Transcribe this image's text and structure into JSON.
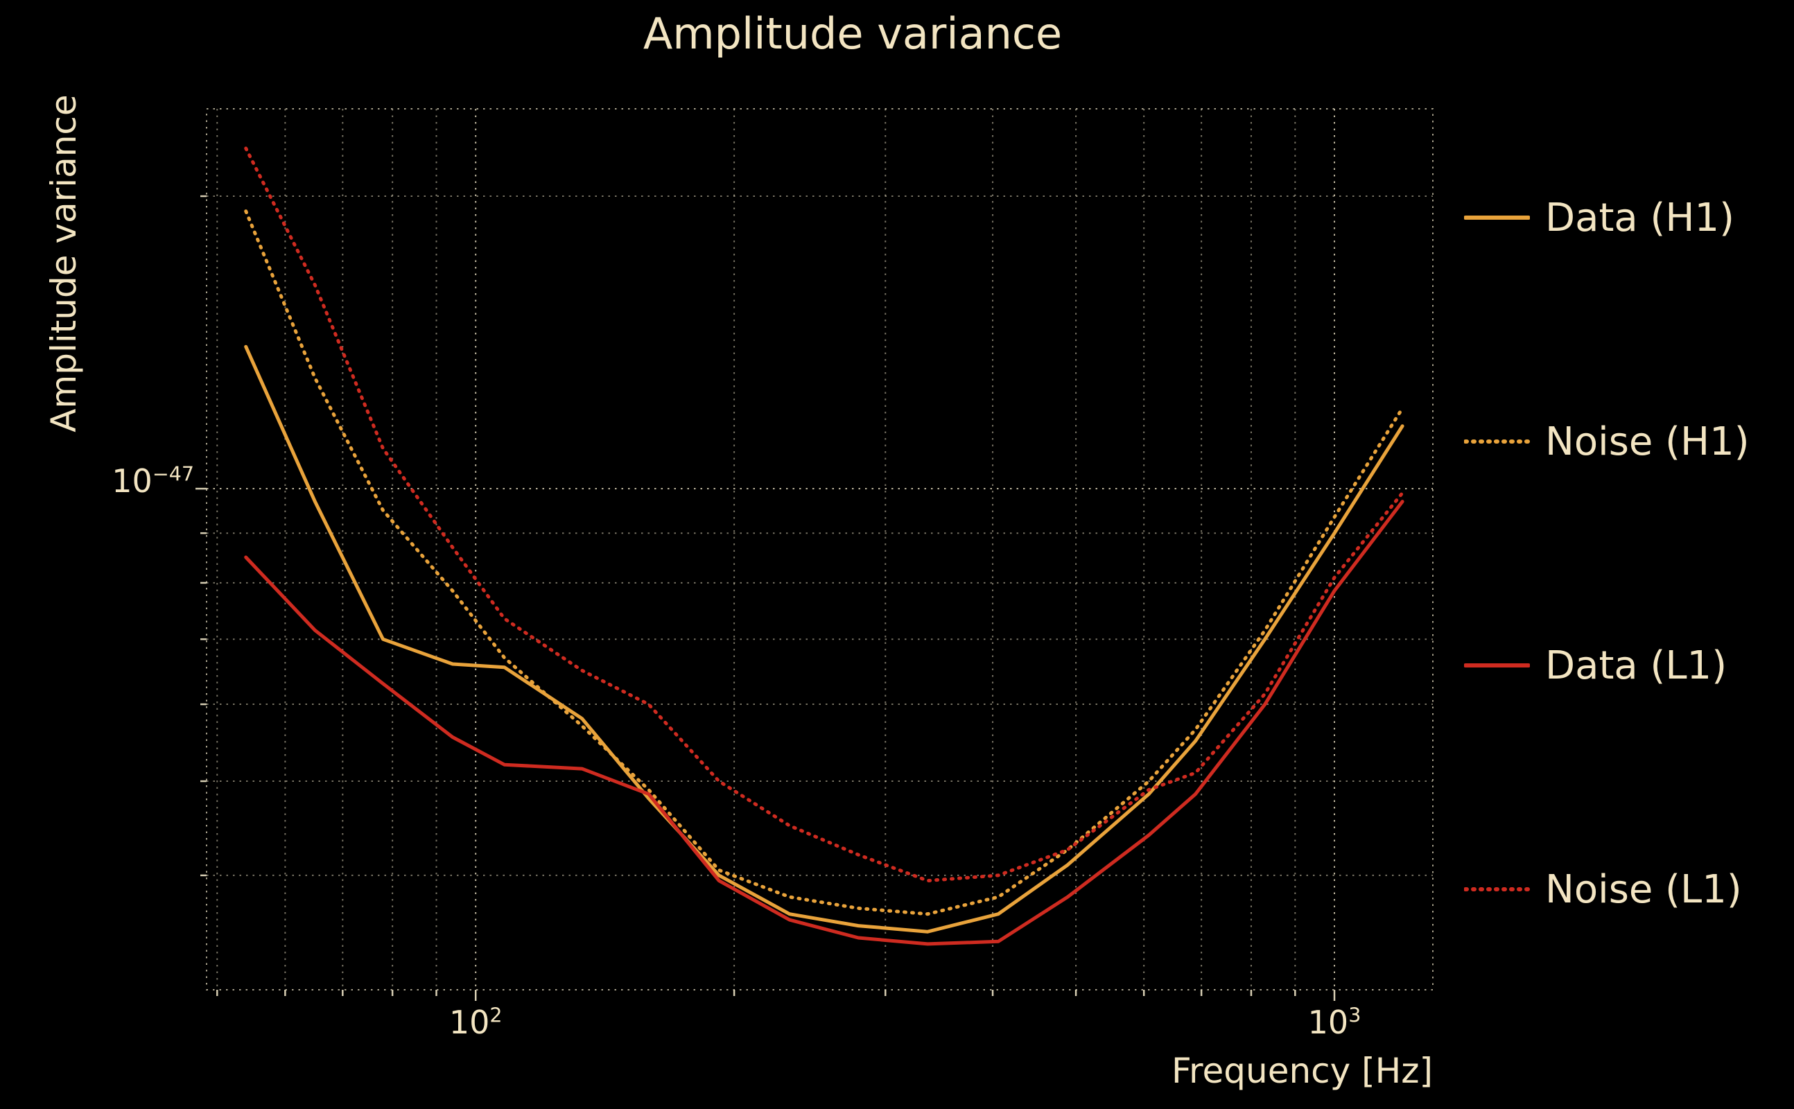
{
  "chart": {
    "background_color": "#000000",
    "text_color": "#f3e5c2",
    "grid_color": "#f0e6c8",
    "h1_color": "#e9a33b",
    "l1_color": "#cf2b20"
  },
  "chart_data": {
    "type": "line",
    "title": "Amplitude variance",
    "xlabel": "Frequency [Hz]",
    "ylabel": "Amplitude variance",
    "xscale": "log",
    "yscale": "log",
    "xlim": [
      48.6,
      1302
    ],
    "ylim": [
      3.05e-48,
      2.46e-47
    ],
    "grid": true,
    "legend_position": "right-outside",
    "x": [
      54,
      65,
      78,
      94,
      108,
      133,
      159,
      192,
      232,
      279,
      336,
      406,
      489,
      608,
      689,
      830,
      1000,
      1200
    ],
    "series": [
      {
        "name": "Data (H1)",
        "color": "#e9a33b",
        "style": "solid",
        "values": [
          1.4e-47,
          9.7e-48,
          7e-48,
          6.6e-48,
          6.55e-48,
          5.8e-48,
          4.8e-48,
          4e-48,
          3.65e-48,
          3.55e-48,
          3.5e-48,
          3.65e-48,
          4.1e-48,
          4.85e-48,
          5.5e-48,
          7e-48,
          9e-48,
          1.16e-47
        ]
      },
      {
        "name": "Noise (H1)",
        "color": "#e9a33b",
        "style": "dotted",
        "values": [
          1.93e-47,
          1.3e-47,
          9.5e-48,
          7.85e-48,
          6.7e-48,
          5.7e-48,
          4.9e-48,
          4.05e-48,
          3.8e-48,
          3.7e-48,
          3.65e-48,
          3.8e-48,
          4.25e-48,
          5e-48,
          5.65e-48,
          7.15e-48,
          9.35e-48,
          1.21e-47
        ]
      },
      {
        "name": "Data (L1)",
        "color": "#cf2b20",
        "style": "solid",
        "values": [
          8.5e-48,
          7.15e-48,
          6.3e-48,
          5.55e-48,
          5.2e-48,
          5.15e-48,
          4.85e-48,
          3.95e-48,
          3.6e-48,
          3.45e-48,
          3.4e-48,
          3.42e-48,
          3.8e-48,
          4.4e-48,
          4.85e-48,
          6e-48,
          7.85e-48,
          9.7e-48
        ]
      },
      {
        "name": "Noise (L1)",
        "color": "#cf2b20",
        "style": "dotted",
        "values": [
          2.24e-47,
          1.62e-47,
          1.1e-47,
          8.7e-48,
          7.35e-48,
          6.5e-48,
          6e-48,
          5e-48,
          4.5e-48,
          4.2e-48,
          3.95e-48,
          4e-48,
          4.25e-48,
          4.9e-48,
          5.1e-48,
          6.15e-48,
          8.1e-48,
          9.9e-48
        ]
      }
    ],
    "x_ticks": [
      {
        "value": 100,
        "base": "10",
        "exp": "2"
      },
      {
        "value": 1000,
        "base": "10",
        "exp": "3"
      }
    ],
    "y_ticks": [
      {
        "value": 1e-47,
        "base": "10",
        "exp": "−47"
      }
    ]
  },
  "legend": {
    "entries": [
      {
        "label": "Data (H1)"
      },
      {
        "label": "Noise (H1)"
      },
      {
        "label": "Data (L1)"
      },
      {
        "label": "Noise (L1)"
      }
    ]
  }
}
